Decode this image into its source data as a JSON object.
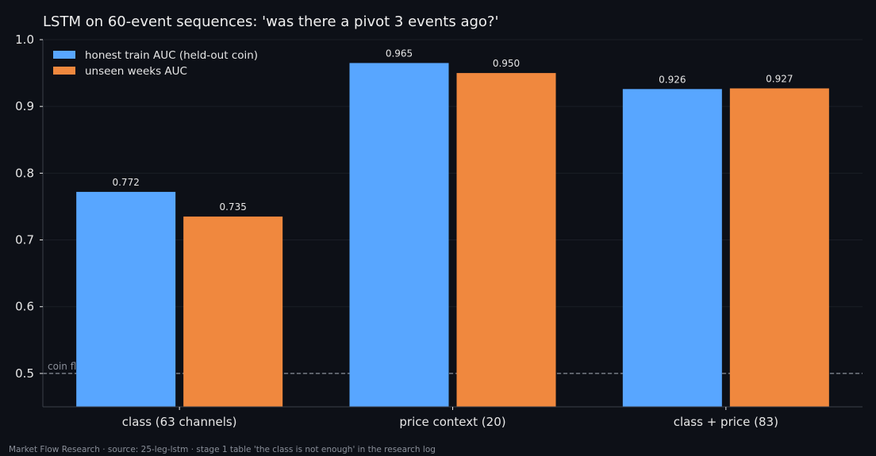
{
  "chart_data": {
    "type": "bar",
    "title": "LSTM on 60-event sequences: 'was there a pivot 3 events ago?'",
    "xlabel": "",
    "ylabel": "",
    "categories": [
      "class (63 channels)",
      "price context (20)",
      "class + price (83)"
    ],
    "series": [
      {
        "name": "honest train AUC (held-out coin)",
        "values": [
          0.772,
          0.965,
          0.926
        ],
        "color": "#58a6ff"
      },
      {
        "name": "unseen weeks AUC",
        "values": [
          0.735,
          0.95,
          0.927
        ],
        "color": "#f0883e"
      }
    ],
    "value_labels": [
      [
        "0.772",
        "0.965",
        "0.926"
      ],
      [
        "0.735",
        "0.950",
        "0.927"
      ]
    ],
    "ylim": [
      0.45,
      1.0
    ],
    "yticks": [
      0.5,
      0.6,
      0.7,
      0.8,
      0.9,
      1.0
    ],
    "ytick_labels": [
      "0.5",
      "0.6",
      "0.7",
      "0.8",
      "0.9",
      "1.0"
    ],
    "grid": true,
    "legend_position": "top-left",
    "reference_line": {
      "value": 0.5,
      "label": "coin flip",
      "color": "#8a8f99"
    },
    "footer": "Market Flow Research · source: 25-leg-lstm · stage 1 table 'the class is not enough' in the research log",
    "colors": {
      "background": "#0d1017",
      "grid": "#1a1e26",
      "axis": "#3a3f4a",
      "text": "#e6e6e6"
    }
  }
}
